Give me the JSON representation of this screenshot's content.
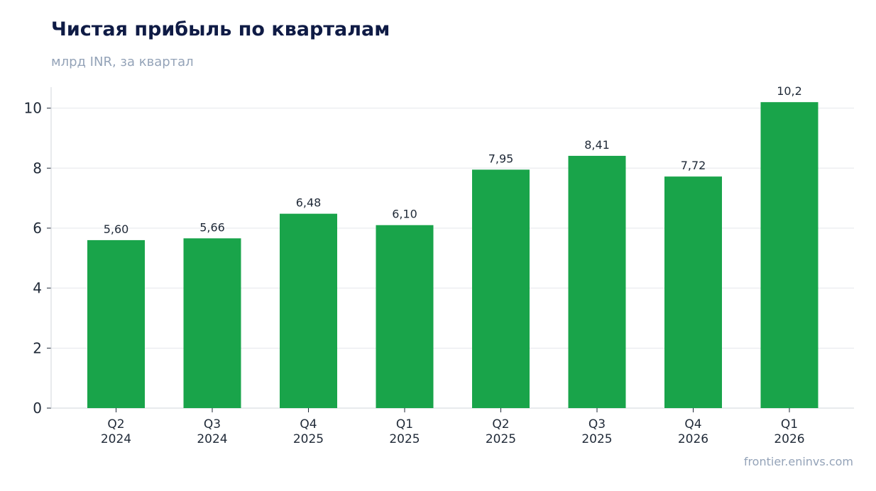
{
  "header": {
    "title": "Чистая прибыль по кварталам",
    "subtitle": "млрд INR, за квартал"
  },
  "footer": {
    "source": "frontier.eninvs.com"
  },
  "colors": {
    "bar": "#19a44a",
    "grid": "#e5e7eb",
    "title": "#0f1b45",
    "muted": "#94a3b8"
  },
  "chart_data": {
    "type": "bar",
    "title": "Чистая прибыль по кварталам",
    "subtitle": "млрд INR, за квартал",
    "categories": [
      [
        "Q2",
        "2024"
      ],
      [
        "Q3",
        "2024"
      ],
      [
        "Q4",
        "2025"
      ],
      [
        "Q1",
        "2025"
      ],
      [
        "Q2",
        "2025"
      ],
      [
        "Q3",
        "2025"
      ],
      [
        "Q4",
        "2026"
      ],
      [
        "Q1",
        "2026"
      ]
    ],
    "values": [
      5.6,
      5.66,
      6.48,
      6.1,
      7.95,
      8.41,
      7.72,
      10.2
    ],
    "value_labels": [
      "5,60",
      "5,66",
      "6,48",
      "6,10",
      "7,95",
      "8,41",
      "7,72",
      "10,2"
    ],
    "yticks": [
      0,
      2,
      4,
      6,
      8,
      10
    ],
    "ylim": [
      0,
      10.7
    ],
    "grid": true,
    "legend": false
  }
}
